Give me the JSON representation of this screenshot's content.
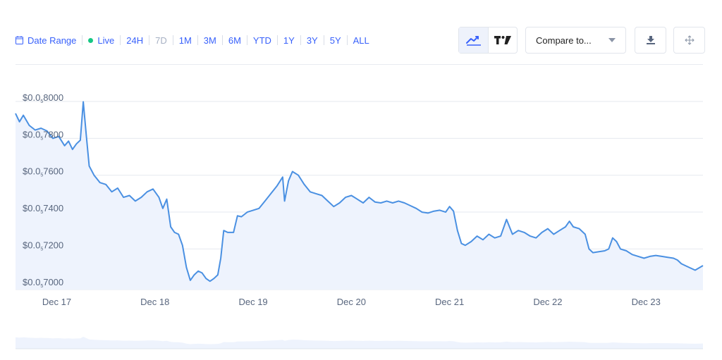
{
  "toolbar": {
    "date_range_label": "Date Range",
    "live_label": "Live",
    "ranges": [
      {
        "label": "24H",
        "enabled": true
      },
      {
        "label": "7D",
        "enabled": false
      },
      {
        "label": "1M",
        "enabled": true
      },
      {
        "label": "3M",
        "enabled": true
      },
      {
        "label": "6M",
        "enabled": true
      },
      {
        "label": "YTD",
        "enabled": true
      },
      {
        "label": "1Y",
        "enabled": true
      },
      {
        "label": "3Y",
        "enabled": true
      },
      {
        "label": "5Y",
        "enabled": true
      },
      {
        "label": "ALL",
        "enabled": true
      }
    ],
    "compare_label": "Compare to...",
    "active_chart_type": "line",
    "icons": [
      "calendar-icon",
      "line-chart-icon",
      "tradingview-icon",
      "caret-down-icon",
      "download-icon",
      "move-icon"
    ]
  },
  "colors": {
    "accent": "#3861fb",
    "line": "#4a90e2",
    "area": "#eef3fd",
    "live": "#16c784",
    "muted": "#a6b0c3"
  },
  "chart_data": {
    "type": "area",
    "y_prefix": "$0.0",
    "y_subscript": "5",
    "ylim": [
      0.698,
      0.8
    ],
    "y_ticks": [
      {
        "value": 0.8,
        "label": "8000"
      },
      {
        "value": 0.78,
        "label": "7800"
      },
      {
        "value": 0.76,
        "label": "7600"
      },
      {
        "value": 0.74,
        "label": "7400"
      },
      {
        "value": 0.72,
        "label": "7200"
      },
      {
        "value": 0.7,
        "label": "7000"
      }
    ],
    "xlim": [
      16.58,
      23.58
    ],
    "x_ticks": [
      {
        "value": 17,
        "label": "Dec 17"
      },
      {
        "value": 18,
        "label": "Dec 18"
      },
      {
        "value": 19,
        "label": "Dec 19"
      },
      {
        "value": 20,
        "label": "Dec 20"
      },
      {
        "value": 21,
        "label": "Dec 21"
      },
      {
        "value": 22,
        "label": "Dec 22"
      },
      {
        "value": 23,
        "label": "Dec 23"
      }
    ],
    "grid": true,
    "series": [
      {
        "points": [
          [
            16.58,
            0.7935
          ],
          [
            16.62,
            0.789
          ],
          [
            16.66,
            0.7925
          ],
          [
            16.72,
            0.787
          ],
          [
            16.78,
            0.7845
          ],
          [
            16.84,
            0.7855
          ],
          [
            16.9,
            0.784
          ],
          [
            16.96,
            0.78
          ],
          [
            17.02,
            0.781
          ],
          [
            17.08,
            0.776
          ],
          [
            17.12,
            0.7785
          ],
          [
            17.16,
            0.774
          ],
          [
            17.2,
            0.777
          ],
          [
            17.24,
            0.779
          ],
          [
            17.27,
            0.7998
          ],
          [
            17.3,
            0.782
          ],
          [
            17.33,
            0.765
          ],
          [
            17.38,
            0.76
          ],
          [
            17.44,
            0.756
          ],
          [
            17.5,
            0.755
          ],
          [
            17.56,
            0.751
          ],
          [
            17.62,
            0.753
          ],
          [
            17.68,
            0.748
          ],
          [
            17.74,
            0.749
          ],
          [
            17.8,
            0.746
          ],
          [
            17.86,
            0.748
          ],
          [
            17.92,
            0.751
          ],
          [
            17.98,
            0.7525
          ],
          [
            18.04,
            0.748
          ],
          [
            18.08,
            0.742
          ],
          [
            18.12,
            0.747
          ],
          [
            18.16,
            0.732
          ],
          [
            18.2,
            0.729
          ],
          [
            18.24,
            0.728
          ],
          [
            18.28,
            0.722
          ],
          [
            18.32,
            0.71
          ],
          [
            18.36,
            0.703
          ],
          [
            18.4,
            0.706
          ],
          [
            18.44,
            0.708
          ],
          [
            18.48,
            0.707
          ],
          [
            18.52,
            0.704
          ],
          [
            18.56,
            0.7025
          ],
          [
            18.6,
            0.704
          ],
          [
            18.64,
            0.706
          ],
          [
            18.67,
            0.715
          ],
          [
            18.7,
            0.73
          ],
          [
            18.74,
            0.729
          ],
          [
            18.8,
            0.729
          ],
          [
            18.84,
            0.738
          ],
          [
            18.88,
            0.7375
          ],
          [
            18.94,
            0.74
          ],
          [
            19.0,
            0.741
          ],
          [
            19.06,
            0.742
          ],
          [
            19.12,
            0.746
          ],
          [
            19.18,
            0.75
          ],
          [
            19.24,
            0.754
          ],
          [
            19.3,
            0.759
          ],
          [
            19.32,
            0.746
          ],
          [
            19.36,
            0.757
          ],
          [
            19.4,
            0.762
          ],
          [
            19.46,
            0.76
          ],
          [
            19.52,
            0.755
          ],
          [
            19.58,
            0.751
          ],
          [
            19.64,
            0.75
          ],
          [
            19.7,
            0.749
          ],
          [
            19.76,
            0.746
          ],
          [
            19.82,
            0.743
          ],
          [
            19.88,
            0.745
          ],
          [
            19.94,
            0.748
          ],
          [
            20.0,
            0.749
          ],
          [
            20.06,
            0.747
          ],
          [
            20.12,
            0.745
          ],
          [
            20.18,
            0.748
          ],
          [
            20.24,
            0.7455
          ],
          [
            20.3,
            0.745
          ],
          [
            20.36,
            0.746
          ],
          [
            20.42,
            0.745
          ],
          [
            20.48,
            0.746
          ],
          [
            20.54,
            0.745
          ],
          [
            20.6,
            0.7435
          ],
          [
            20.66,
            0.742
          ],
          [
            20.72,
            0.74
          ],
          [
            20.78,
            0.7395
          ],
          [
            20.84,
            0.7405
          ],
          [
            20.9,
            0.741
          ],
          [
            20.96,
            0.74
          ],
          [
            21.0,
            0.743
          ],
          [
            21.04,
            0.7405
          ],
          [
            21.08,
            0.73
          ],
          [
            21.12,
            0.723
          ],
          [
            21.16,
            0.722
          ],
          [
            21.22,
            0.724
          ],
          [
            21.28,
            0.727
          ],
          [
            21.34,
            0.725
          ],
          [
            21.4,
            0.728
          ],
          [
            21.46,
            0.726
          ],
          [
            21.52,
            0.727
          ],
          [
            21.58,
            0.736
          ],
          [
            21.64,
            0.728
          ],
          [
            21.7,
            0.73
          ],
          [
            21.76,
            0.729
          ],
          [
            21.82,
            0.727
          ],
          [
            21.88,
            0.726
          ],
          [
            21.94,
            0.729
          ],
          [
            22.0,
            0.731
          ],
          [
            22.06,
            0.728
          ],
          [
            22.12,
            0.73
          ],
          [
            22.18,
            0.732
          ],
          [
            22.22,
            0.735
          ],
          [
            22.26,
            0.732
          ],
          [
            22.32,
            0.731
          ],
          [
            22.38,
            0.728
          ],
          [
            22.42,
            0.72
          ],
          [
            22.46,
            0.718
          ],
          [
            22.52,
            0.7185
          ],
          [
            22.58,
            0.719
          ],
          [
            22.62,
            0.72
          ],
          [
            22.66,
            0.726
          ],
          [
            22.7,
            0.724
          ],
          [
            22.74,
            0.72
          ],
          [
            22.8,
            0.719
          ],
          [
            22.86,
            0.717
          ],
          [
            22.92,
            0.716
          ],
          [
            22.98,
            0.715
          ],
          [
            23.04,
            0.716
          ],
          [
            23.1,
            0.7165
          ],
          [
            23.16,
            0.716
          ],
          [
            23.22,
            0.7155
          ],
          [
            23.28,
            0.715
          ],
          [
            23.32,
            0.714
          ],
          [
            23.36,
            0.712
          ],
          [
            23.4,
            0.711
          ],
          [
            23.44,
            0.71
          ],
          [
            23.5,
            0.7085
          ],
          [
            23.58,
            0.711
          ]
        ]
      }
    ]
  }
}
